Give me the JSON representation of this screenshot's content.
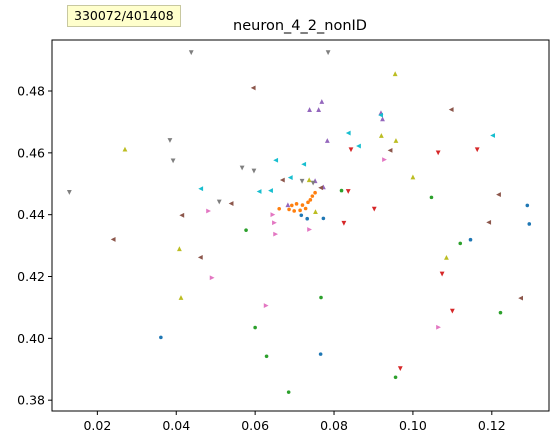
{
  "counter_badge": "330072/401408",
  "chart_data": {
    "type": "scatter",
    "title": "neuron_4_2_nonID",
    "xlabel": "",
    "ylabel": "",
    "xlim": [
      0.0085,
      0.1345
    ],
    "ylim": [
      0.3765,
      0.4965
    ],
    "x_ticks": [
      "0.02",
      "0.04",
      "0.06",
      "0.08",
      "0.10",
      "0.12"
    ],
    "y_ticks": [
      "0.38",
      "0.40",
      "0.42",
      "0.44",
      "0.46",
      "0.48"
    ],
    "grid": false,
    "legend": "none",
    "series": [
      {
        "color": "#1f77b4",
        "marker": "dot",
        "points": [
          [
            0.0717,
            0.4398
          ],
          [
            0.0732,
            0.4387
          ],
          [
            0.0773,
            0.4388
          ],
          [
            0.0361,
            0.4003
          ],
          [
            0.0766,
            0.3949
          ],
          [
            0.1146,
            0.4319
          ],
          [
            0.129,
            0.443
          ],
          [
            0.1295,
            0.437
          ]
        ]
      },
      {
        "color": "#ff7f0e",
        "marker": "dot",
        "points": [
          [
            0.0661,
            0.4419
          ],
          [
            0.0686,
            0.4417
          ],
          [
            0.0693,
            0.443
          ],
          [
            0.0699,
            0.4412
          ],
          [
            0.0705,
            0.4435
          ],
          [
            0.0714,
            0.4414
          ],
          [
            0.072,
            0.4431
          ],
          [
            0.0728,
            0.442
          ],
          [
            0.0734,
            0.444
          ],
          [
            0.074,
            0.4448
          ],
          [
            0.0745,
            0.446
          ],
          [
            0.0752,
            0.4471
          ]
        ]
      },
      {
        "color": "#2ca02c",
        "marker": "dot",
        "points": [
          [
            0.0577,
            0.435
          ],
          [
            0.06,
            0.4035
          ],
          [
            0.0629,
            0.3942
          ],
          [
            0.0685,
            0.3826
          ],
          [
            0.0767,
            0.4132
          ],
          [
            0.0819,
            0.4478
          ],
          [
            0.0956,
            0.3874
          ],
          [
            0.1047,
            0.4456
          ],
          [
            0.112,
            0.4307
          ],
          [
            0.1222,
            0.4083
          ]
        ]
      },
      {
        "color": "#d62728",
        "marker": "tri_down",
        "points": [
          [
            0.0825,
            0.4372
          ],
          [
            0.0836,
            0.4475
          ],
          [
            0.0843,
            0.461
          ],
          [
            0.0902,
            0.4418
          ],
          [
            0.0968,
            0.3902
          ],
          [
            0.1064,
            0.46
          ],
          [
            0.1074,
            0.4208
          ],
          [
            0.11,
            0.4088
          ],
          [
            0.1163,
            0.461
          ]
        ]
      },
      {
        "color": "#9467bd",
        "marker": "tri_up",
        "points": [
          [
            0.0683,
            0.4432
          ],
          [
            0.0738,
            0.474
          ],
          [
            0.0752,
            0.451
          ],
          [
            0.0761,
            0.474
          ],
          [
            0.0769,
            0.4766
          ],
          [
            0.0773,
            0.449
          ],
          [
            0.0783,
            0.464
          ],
          [
            0.0919,
            0.473
          ],
          [
            0.0923,
            0.471
          ]
        ]
      },
      {
        "color": "#8c564b",
        "marker": "tri_left",
        "points": [
          [
            0.024,
            0.432
          ],
          [
            0.0414,
            0.4398
          ],
          [
            0.0461,
            0.4262
          ],
          [
            0.0539,
            0.4436
          ],
          [
            0.0595,
            0.481
          ],
          [
            0.0669,
            0.4512
          ],
          [
            0.0766,
            0.4487
          ],
          [
            0.0942,
            0.4608
          ],
          [
            0.1097,
            0.474
          ],
          [
            0.1192,
            0.4375
          ],
          [
            0.1217,
            0.4465
          ],
          [
            0.1273,
            0.413
          ]
        ]
      },
      {
        "color": "#e377c2",
        "marker": "tri_right",
        "points": [
          [
            0.0482,
            0.4412
          ],
          [
            0.0491,
            0.4196
          ],
          [
            0.0628,
            0.4106
          ],
          [
            0.0645,
            0.44
          ],
          [
            0.0649,
            0.4374
          ],
          [
            0.0652,
            0.4337
          ],
          [
            0.0738,
            0.4352
          ],
          [
            0.0928,
            0.4578
          ],
          [
            0.1065,
            0.4036
          ]
        ]
      },
      {
        "color": "#7f7f7f",
        "marker": "tri_down",
        "points": [
          [
            0.0129,
            0.4472
          ],
          [
            0.0384,
            0.464
          ],
          [
            0.0392,
            0.4574
          ],
          [
            0.0438,
            0.4924
          ],
          [
            0.0509,
            0.4441
          ],
          [
            0.0567,
            0.4551
          ],
          [
            0.0597,
            0.4541
          ],
          [
            0.0719,
            0.4508
          ],
          [
            0.0747,
            0.4502
          ],
          [
            0.0785,
            0.4924
          ]
        ]
      },
      {
        "color": "#bcbd22",
        "marker": "tri_up",
        "points": [
          [
            0.027,
            0.4612
          ],
          [
            0.0408,
            0.429
          ],
          [
            0.0412,
            0.4132
          ],
          [
            0.0737,
            0.4513
          ],
          [
            0.0753,
            0.441
          ],
          [
            0.092,
            0.4656
          ],
          [
            0.0957,
            0.464
          ],
          [
            0.0955,
            0.4856
          ],
          [
            0.1,
            0.4522
          ],
          [
            0.1085,
            0.4262
          ]
        ]
      },
      {
        "color": "#17becf",
        "marker": "tri_left",
        "points": [
          [
            0.0462,
            0.4484
          ],
          [
            0.061,
            0.4475
          ],
          [
            0.0639,
            0.4478
          ],
          [
            0.0652,
            0.4576
          ],
          [
            0.0689,
            0.452
          ],
          [
            0.0723,
            0.4563
          ],
          [
            0.0836,
            0.4664
          ],
          [
            0.0862,
            0.4622
          ],
          [
            0.0918,
            0.4722
          ],
          [
            0.1202,
            0.4656
          ]
        ]
      }
    ]
  }
}
